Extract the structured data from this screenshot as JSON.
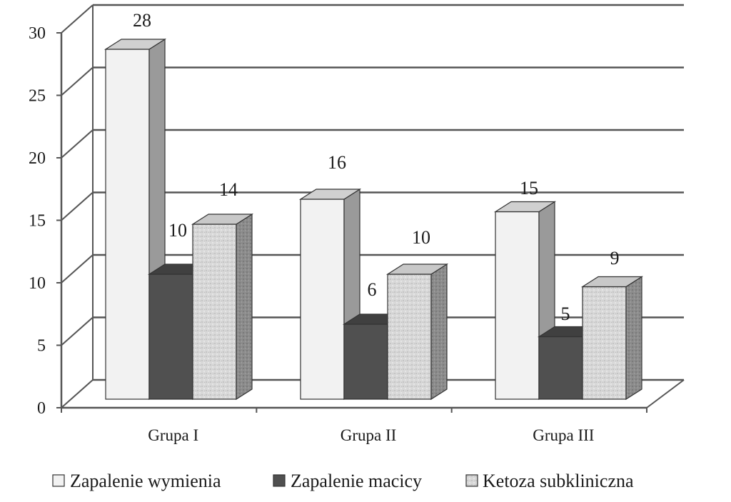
{
  "chart_data": {
    "type": "bar",
    "variant": "3d-clustered-column",
    "categories": [
      "Grupa I",
      "Grupa II",
      "Grupa III"
    ],
    "series": [
      {
        "name": "Zapalenie wymienia",
        "values": [
          28,
          16,
          15
        ],
        "front": "#f2f2f2",
        "side": "#9a9a9a",
        "top": "#d0d0d0"
      },
      {
        "name": "Zapalenie macicy",
        "values": [
          10,
          6,
          5
        ],
        "front": "#505050",
        "side": "#3a3a3a",
        "top": "#404040"
      },
      {
        "name": "Ketoza subkliniczna",
        "values": [
          14,
          10,
          9
        ],
        "front": "#d6d6d6",
        "side": "#8a8a8a",
        "top": "#c8c8c8"
      }
    ],
    "yticks": [
      0,
      5,
      10,
      15,
      20,
      25,
      30
    ],
    "ylim": [
      0,
      30
    ],
    "grid": true,
    "legend": "bottom",
    "data_labels": true,
    "gridline_color": "#555555"
  }
}
